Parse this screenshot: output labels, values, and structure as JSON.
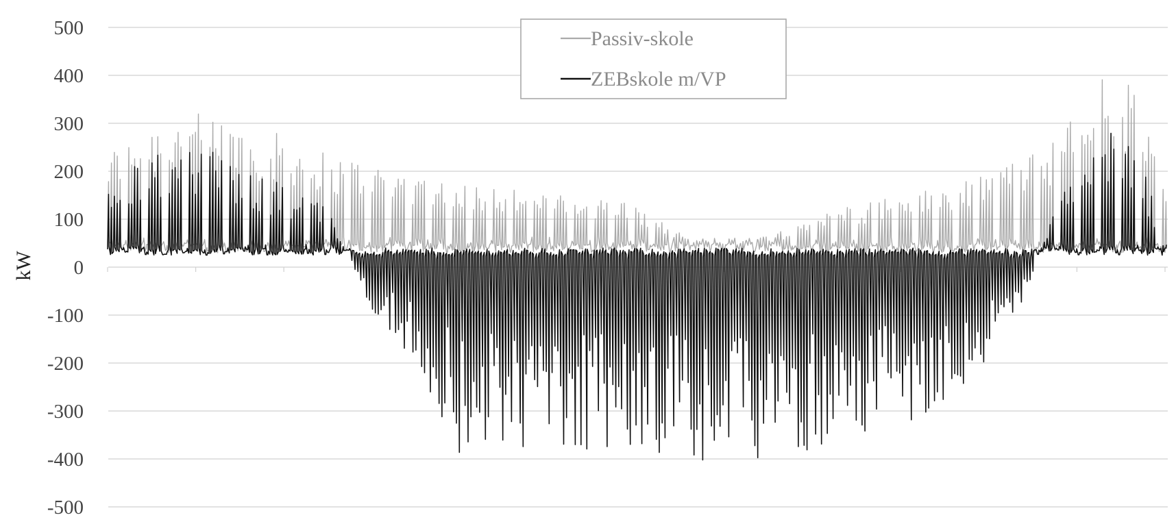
{
  "chart_data": {
    "type": "line",
    "title": "",
    "xlabel": "",
    "ylabel": "kW",
    "ylim": [
      -500,
      500
    ],
    "yticks": [
      500,
      400,
      300,
      200,
      100,
      0,
      -100,
      -200,
      -300,
      -400,
      -500
    ],
    "ytick_labels": [
      "500",
      "400",
      "300",
      "200",
      "100",
      "0",
      "-100",
      "-200",
      "-300",
      "-400",
      "-500"
    ],
    "xlim": [
      0,
      8760
    ],
    "grid": true,
    "legend_position": "top-center",
    "colors": {
      "passiv": "#aaaaaa",
      "zeb": "#111111",
      "grid": "#d9d9d9"
    },
    "series": [
      {
        "name": "Passiv-skole",
        "description_level": "daily school-load peaks ~300 in winter, ~50 in summer, ~400 in late December",
        "x": [
          0,
          264,
          600,
          960,
          1400,
          1800,
          2200,
          2500,
          2900,
          3300,
          3800,
          4300,
          4800,
          5200,
          5600,
          6100,
          6500,
          7000,
          7500,
          7900,
          8200,
          8500,
          8760
        ],
        "values": [
          240,
          300,
          320,
          320,
          280,
          240,
          220,
          200,
          180,
          170,
          150,
          140,
          60,
          50,
          80,
          130,
          150,
          170,
          250,
          280,
          410,
          380,
          160
        ]
      },
      {
        "name": "ZEBskole m/VP",
        "description_level": "daily peaks up to ~250 in winter, negative export down to ~-400 in spring and summer",
        "x": [
          0,
          264,
          600,
          960,
          1400,
          1800,
          2200,
          2500,
          2900,
          3300,
          3800,
          4300,
          4800,
          5200,
          5600,
          6100,
          6500,
          7000,
          7500,
          7900,
          8200,
          8500,
          8760
        ],
        "values": [
          160,
          230,
          250,
          240,
          180,
          130,
          -100,
          -200,
          -390,
          -380,
          -400,
          -380,
          -410,
          -410,
          -390,
          -380,
          -330,
          -300,
          -130,
          170,
          280,
          280,
          40
        ]
      }
    ]
  }
}
